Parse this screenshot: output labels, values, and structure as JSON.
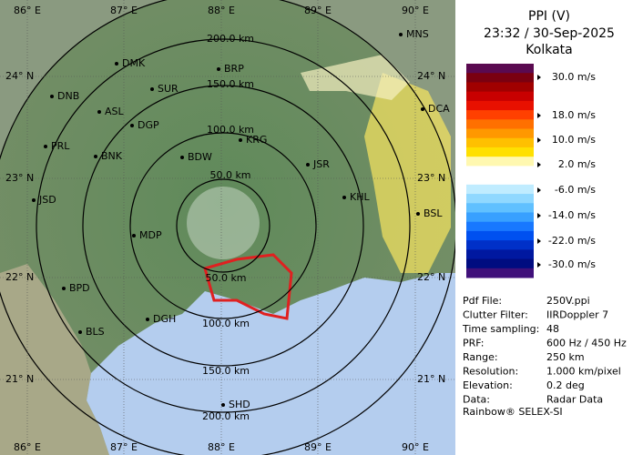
{
  "map": {
    "lon_labels": [
      "86° E",
      "87° E",
      "88° E",
      "89° E",
      "90° E"
    ],
    "lat_labels": [
      "24° N",
      "23° N",
      "22° N",
      "21° N"
    ],
    "range_labels_north": [
      "200.0 km",
      "150.0 km",
      "100.0 km",
      "50.0 km"
    ],
    "range_labels_south": [
      "50.0 km",
      "100.0 km",
      "150.0 km",
      "200.0 km"
    ],
    "cities": [
      "MNS",
      "DMK",
      "BRP",
      "DNB",
      "SUR",
      "ASL",
      "DGP",
      "DCA",
      "KRG",
      "PRL",
      "BNK",
      "BDW",
      "JSR",
      "KHL",
      "JSD",
      "BSL",
      "MDP",
      "BPD",
      "DGH",
      "BLS",
      "SHD"
    ]
  },
  "panel": {
    "title": "PPI (V)",
    "timestamp": "23:32 / 30-Sep-2025",
    "station": "Kolkata",
    "colorbar": {
      "colors": [
        "#5a0a50",
        "#7a0010",
        "#a00000",
        "#c80000",
        "#e81000",
        "#ff4000",
        "#ff7000",
        "#ff9800",
        "#ffc000",
        "#ffe000",
        "#fff8b0",
        "#ffffff",
        "#ffffff",
        "#c0ecff",
        "#90d8ff",
        "#60c0ff",
        "#38a0ff",
        "#1878ff",
        "#0050f0",
        "#0030c8",
        "#0018a0",
        "#000c80",
        "#40107a"
      ],
      "labels": [
        "30.0 m/s",
        "18.0 m/s",
        "10.0 m/s",
        "2.0 m/s",
        "-6.0 m/s",
        "-14.0 m/s",
        "-22.0 m/s",
        "-30.0 m/s"
      ]
    },
    "info": [
      [
        "Pdf File:",
        "250V.ppi"
      ],
      [
        "Clutter Filter:",
        "IIRDoppler 7"
      ],
      [
        "Time sampling:",
        "48"
      ],
      [
        "PRF:",
        "600 Hz / 450 Hz"
      ],
      [
        "Range:",
        "250 km"
      ],
      [
        "Resolution:",
        "1.000 km/pixel"
      ],
      [
        "Elevation:",
        "0.2 deg"
      ],
      [
        "Data:",
        "Radar Data"
      ]
    ],
    "footer": "Rainbow® SELEX-SI"
  }
}
